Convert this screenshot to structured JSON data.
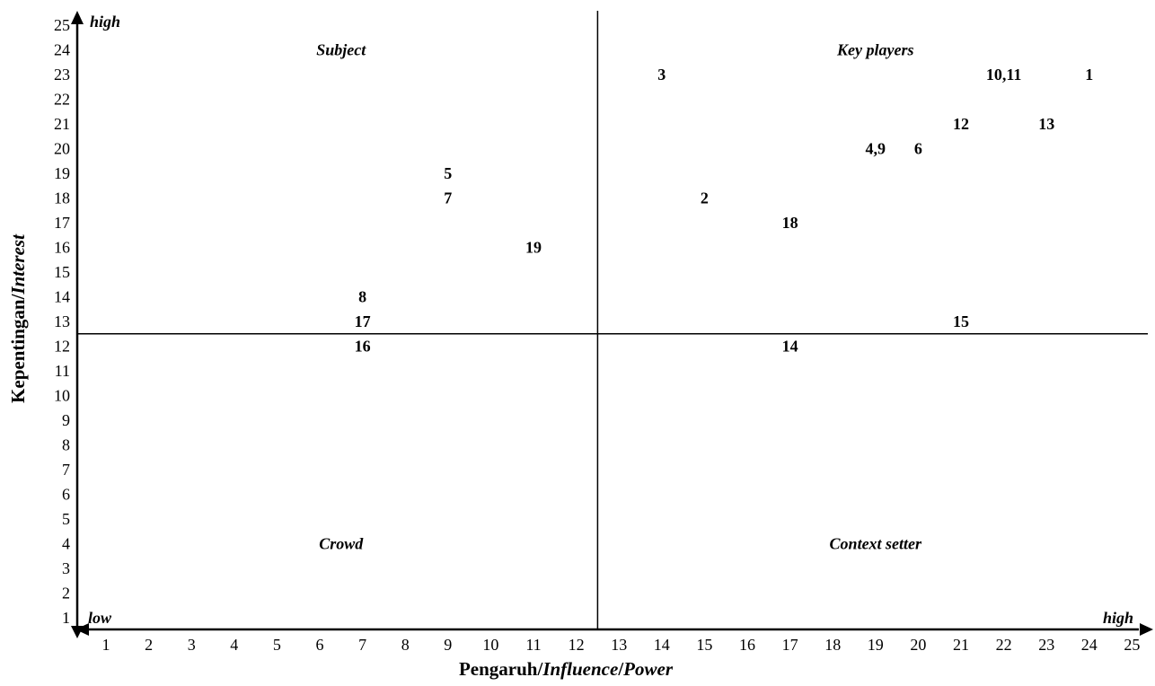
{
  "chart_data": {
    "type": "scatter",
    "xlabel": {
      "prefix": "Pengaruh/",
      "mid": "Influence",
      "sep": "/",
      "suffix": "Power"
    },
    "ylabel": {
      "prefix": "Kepentingan/",
      "mid": "Interest"
    },
    "xlim": [
      1,
      25
    ],
    "ylim": [
      1,
      25
    ],
    "x_ticks": [
      1,
      2,
      3,
      4,
      5,
      6,
      7,
      8,
      9,
      10,
      11,
      12,
      13,
      14,
      15,
      16,
      17,
      18,
      19,
      20,
      21,
      22,
      23,
      24,
      25
    ],
    "y_ticks": [
      1,
      2,
      3,
      4,
      5,
      6,
      7,
      8,
      9,
      10,
      11,
      12,
      13,
      14,
      15,
      16,
      17,
      18,
      19,
      20,
      21,
      22,
      23,
      24,
      25
    ],
    "x_divider": 12.5,
    "y_divider": 12.5,
    "axis_end_labels": {
      "origin": "low",
      "y_high": "high",
      "x_high": "high"
    },
    "quadrants": [
      {
        "label": "Subject",
        "x": 6.5,
        "y": 24
      },
      {
        "label": "Key players",
        "x": 19,
        "y": 24
      },
      {
        "label": "Crowd",
        "x": 6.5,
        "y": 4
      },
      {
        "label": "Context setter",
        "x": 19,
        "y": 4
      }
    ],
    "points": [
      {
        "label": "1",
        "x": 24,
        "y": 23
      },
      {
        "label": "2",
        "x": 15,
        "y": 18
      },
      {
        "label": "3",
        "x": 14,
        "y": 23
      },
      {
        "label": "4,9",
        "x": 19,
        "y": 20
      },
      {
        "label": "5",
        "x": 9,
        "y": 19
      },
      {
        "label": "6",
        "x": 20,
        "y": 20
      },
      {
        "label": "7",
        "x": 9,
        "y": 18
      },
      {
        "label": "8",
        "x": 7,
        "y": 14
      },
      {
        "label": "10,11",
        "x": 22,
        "y": 23
      },
      {
        "label": "12",
        "x": 21,
        "y": 21
      },
      {
        "label": "13",
        "x": 23,
        "y": 21
      },
      {
        "label": "14",
        "x": 17,
        "y": 12
      },
      {
        "label": "15",
        "x": 21,
        "y": 13
      },
      {
        "label": "16",
        "x": 7,
        "y": 12
      },
      {
        "label": "17",
        "x": 7,
        "y": 13
      },
      {
        "label": "18",
        "x": 17,
        "y": 17
      },
      {
        "label": "19",
        "x": 11,
        "y": 16
      }
    ]
  }
}
